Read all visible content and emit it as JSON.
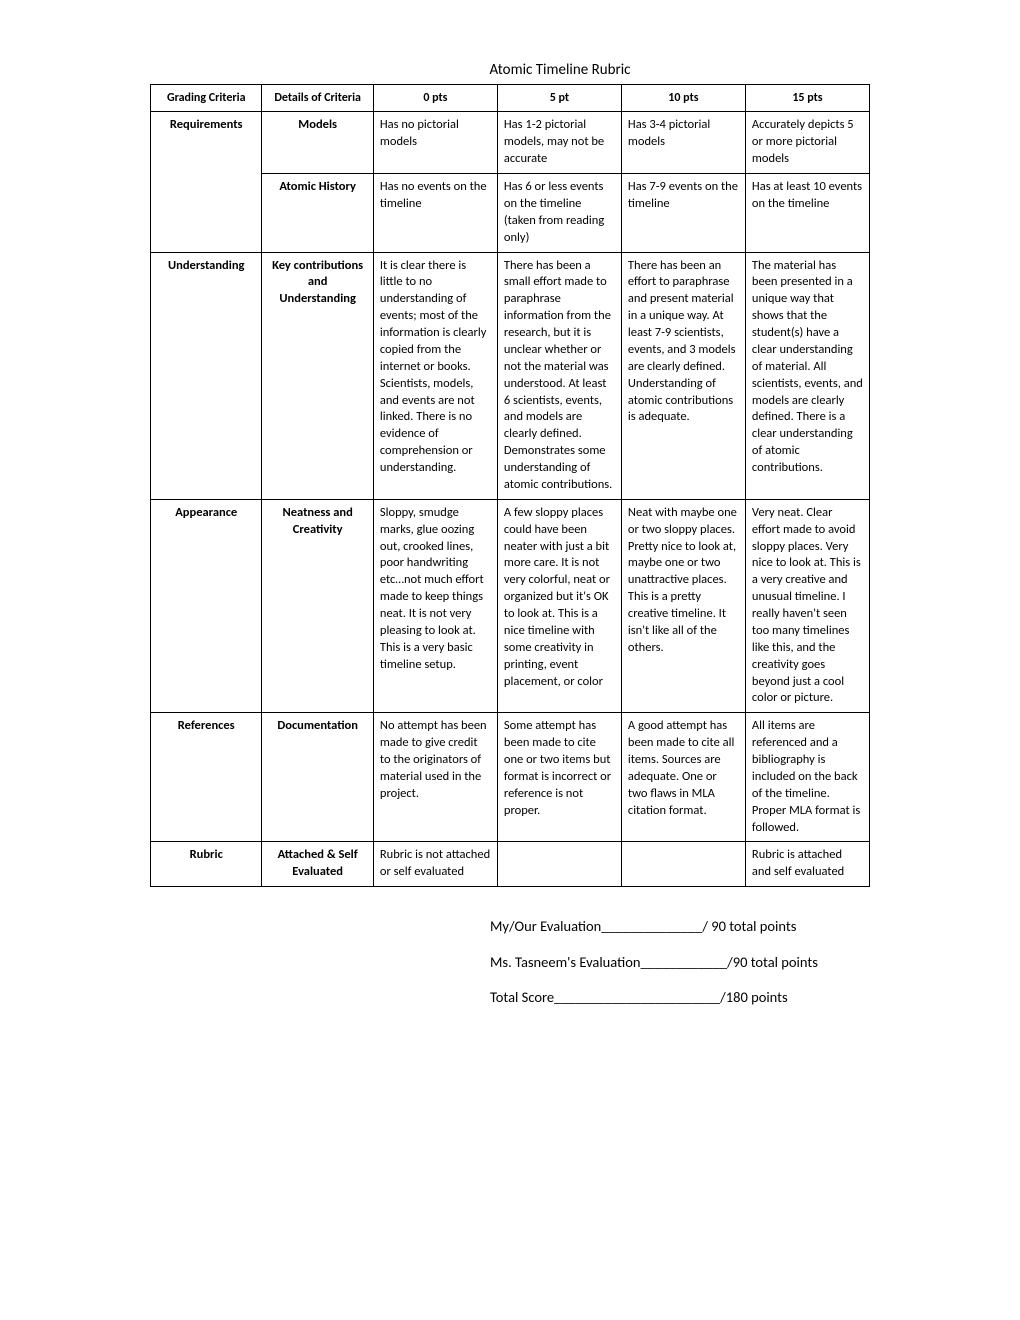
{
  "title": "Atomic Timeline Rubric",
  "headers": [
    "Grading Criteria",
    "Details of Criteria",
    "0 pts",
    "5 pt",
    "10 pts",
    "15 pts"
  ],
  "rows": [
    {
      "criteria": "Requirements",
      "criteria_rowspan": 2,
      "details": "Models",
      "cells": [
        "Has no pictorial models",
        "Has 1-2 pictorial models, may not be accurate",
        "Has 3-4 pictorial models",
        "Accurately depicts 5 or more pictorial models"
      ]
    },
    {
      "details": "Atomic History",
      "cells": [
        "Has no events on the timeline",
        "Has 6 or less events on the timeline (taken from reading only)",
        "Has 7-9 events on the timeline",
        "Has at least 10 events on the timeline"
      ]
    },
    {
      "criteria": "Understanding",
      "details": "Key contributions and Understanding",
      "cells": [
        "It is clear there is little to no understanding of events; most of the information is clearly copied from the internet or books. Scientists, models, and events are not linked. There is no evidence of comprehension or understanding.",
        "There has been a small effort made to paraphrase information from the research, but it is unclear whether or not the material was understood. At least 6 scientists, events, and models are clearly defined. Demonstrates some understanding of atomic contributions.",
        "There has been an effort to paraphrase and present material in a unique way. At least 7-9 scientists, events, and 3 models are clearly defined. Understanding of atomic contributions is adequate.",
        "The material has been presented in a unique way that shows that the student(s) have a clear understanding of material. All scientists, events, and models are clearly defined. There is a clear understanding of atomic contributions."
      ]
    },
    {
      "criteria": "Appearance",
      "details": "Neatness and Creativity",
      "cells": [
        "Sloppy, smudge marks, glue oozing out, crooked lines, poor handwriting etc…not much effort made to keep things neat. It is not very pleasing to look at. This is a very basic timeline setup.",
        "A few sloppy places could have been neater with just a bit more care. It is not very colorful, neat or organized but it's OK to look at. This is a nice timeline with some creativity in printing, event placement, or color",
        "Neat with maybe one or two sloppy places. Pretty nice to look at, maybe one or two unattractive places. This is a pretty creative timeline. It isn't like all of the others.",
        "Very neat. Clear effort made to avoid sloppy places. Very nice to look at. This is a very creative and unusual timeline. I really haven't seen too many timelines like this, and the creativity goes beyond just a cool color or picture."
      ]
    },
    {
      "criteria": "References",
      "details": "Documentation",
      "cells": [
        "No attempt has been made to give credit to the originators of material used in the project.",
        "Some attempt has been made to cite one or two items but format is incorrect or reference is not proper.",
        "A good attempt has been made to cite all items. Sources are adequate. One or two flaws in MLA citation format.",
        "All items are referenced and a bibliography is included on the back of the timeline. Proper MLA format is followed."
      ]
    },
    {
      "criteria": "Rubric",
      "details": "Attached & Self Evaluated",
      "cells": [
        "Rubric is not attached or self evaluated",
        "",
        "",
        "Rubric is attached and self evaluated"
      ]
    }
  ],
  "eval": {
    "line1": "My/Our Evaluation______________/ 90 total points",
    "line2": "Ms. Tasneem's Evaluation____________/90 total points",
    "line3": "Total Score_______________________/180 points"
  }
}
